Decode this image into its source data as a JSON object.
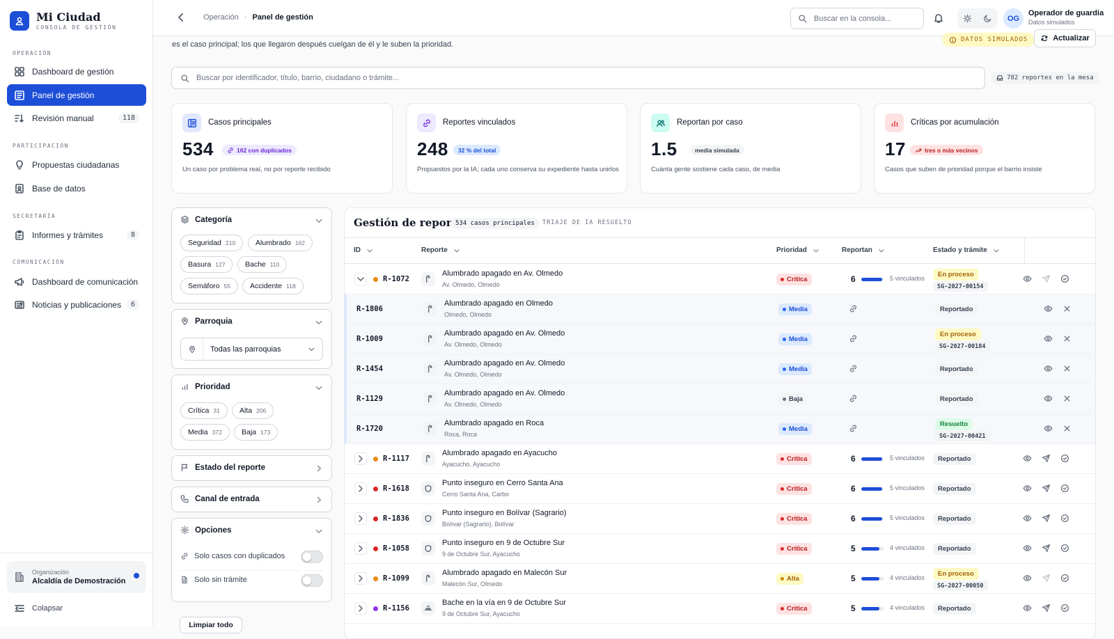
{
  "brand": {
    "name": "Mi Ciudad",
    "sub": "CONSOLA DE GESTIÓN"
  },
  "nav": {
    "sections": {
      "operacion": "OPERACIÓN",
      "participacion": "PARTICIPACIÓN",
      "secretaria": "SECRETARÍA",
      "comunicacion": "COMUNICACIÓN"
    },
    "items": [
      {
        "label": "Dashboard de gestión",
        "icon": "grid-icon"
      },
      {
        "label": "Panel de gestión",
        "icon": "panel-icon"
      },
      {
        "label": "Revisión manual",
        "icon": "sort-icon",
        "badge": "118"
      },
      {
        "label": "Propuestas ciudadanas",
        "icon": "bulb-icon"
      },
      {
        "label": "Base de datos",
        "icon": "contacts-icon"
      },
      {
        "label": "Informes y trámites",
        "icon": "clipboard-icon",
        "badge": "8"
      },
      {
        "label": "Dashboard de comunicación",
        "icon": "megaphone-icon"
      },
      {
        "label": "Noticias y publicaciones",
        "icon": "newspaper-icon",
        "badge": "6"
      }
    ],
    "org_label": "Organización",
    "org_name": "Alcaldía de Demostración",
    "collapse": "Colapsar"
  },
  "topbar": {
    "crumb_parent": "Operación",
    "crumb_sep": "·",
    "crumb_current": "Panel de gestión",
    "search_placeholder": "Buscar en la consola...",
    "avatar": "OG",
    "user_name": "Operador de guardia",
    "user_sub": "Datos simulados"
  },
  "main": {
    "intro": "es el caso principal; los que llegaron después cuelgan de él y le suben la prioridad.",
    "sim_badge": "DATOS SIMULADOS",
    "refresh": "Actualizar",
    "search_placeholder": "Buscar por identificador, título, barrio, ciudadano o trámite...",
    "count_pill": "782 reportes en la mesa"
  },
  "kpis": [
    {
      "title": "Casos principales",
      "value": "534",
      "badge": "162 con duplicados",
      "desc": "Un caso por problema real, no por reporte recibido"
    },
    {
      "title": "Reportes vinculados",
      "value": "248",
      "badge": "32 % del total",
      "desc": "Propuestos por la IA; cada uno conserva su expediente hasta unirlos"
    },
    {
      "title": "Reportan por caso",
      "value": "1.5",
      "badge": "media simulada",
      "desc": "Cuánta gente sostiene cada caso, de media"
    },
    {
      "title": "Críticas por acumulación",
      "value": "17",
      "badge": "tres o más vecinos",
      "desc": "Casos que suben de prioridad porque el barrio insiste"
    }
  ],
  "filters": {
    "categoria": {
      "title": "Categoría",
      "chips": [
        {
          "l": "Seguridad",
          "n": "210"
        },
        {
          "l": "Alumbrado",
          "n": "162"
        },
        {
          "l": "Basura",
          "n": "127"
        },
        {
          "l": "Bache",
          "n": "110"
        },
        {
          "l": "Semáforo",
          "n": "55"
        },
        {
          "l": "Accidente",
          "n": "118"
        }
      ]
    },
    "parroquia": {
      "title": "Parroquia",
      "select": "Todas las parroquias"
    },
    "prioridad": {
      "title": "Prioridad",
      "chips": [
        {
          "l": "Crítica",
          "n": "31"
        },
        {
          "l": "Alta",
          "n": "206"
        },
        {
          "l": "Media",
          "n": "372"
        },
        {
          "l": "Baja",
          "n": "173"
        }
      ]
    },
    "estado": {
      "title": "Estado del reporte"
    },
    "canal": {
      "title": "Canal de entrada"
    },
    "opciones": {
      "title": "Opciones",
      "opt1": "Solo casos con duplicados",
      "opt2": "Solo sin trámite"
    },
    "clear": "Limpiar todo"
  },
  "table": {
    "title": "Gestión de reportes",
    "pill": "534 casos principales",
    "sub": "TRIAJE DE IA RESUELTO",
    "headers": {
      "id": "ID",
      "reporte": "Reporte",
      "prioridad": "Prioridad",
      "reportan": "Reportan",
      "estado": "Estado y trámite"
    },
    "rows": [
      {
        "type": "main",
        "id": "R-1072",
        "dot": "#ea8a0c",
        "icon": "streetlight-icon",
        "title": "Alumbrado apagado en Av. Olmedo",
        "sub": "Av. Olmedo, Olmedo",
        "prio": "Crítica",
        "count": "6",
        "fill": 0.95,
        "linked": "5 vinculados",
        "estado": "En proceso",
        "tramite": "SG-2027-00154",
        "actions": [
          "eye",
          "send",
          "check"
        ]
      },
      {
        "type": "sub",
        "id": "R-1806",
        "icon": "streetlight-icon",
        "title": "Alumbrado apagado en Olmedo",
        "sub": "Olmedo, Olmedo",
        "prio": "Media",
        "estado": "Reportado"
      },
      {
        "type": "sub",
        "id": "R-1009",
        "icon": "streetlight-icon",
        "title": "Alumbrado apagado en Av. Olmedo",
        "sub": "Av. Olmedo, Olmedo",
        "prio": "Media",
        "estado": "En proceso",
        "tramite": "SG-2027-00184"
      },
      {
        "type": "sub",
        "id": "R-1454",
        "icon": "streetlight-icon",
        "title": "Alumbrado apagado en Av. Olmedo",
        "sub": "Av. Olmedo, Olmedo",
        "prio": "Media",
        "estado": "Reportado"
      },
      {
        "type": "sub",
        "id": "R-1129",
        "icon": "streetlight-icon",
        "title": "Alumbrado apagado en Av. Olmedo",
        "sub": "Av. Olmedo, Olmedo",
        "prio": "Baja",
        "estado": "Reportado"
      },
      {
        "type": "sub",
        "id": "R-1720",
        "icon": "streetlight-icon",
        "title": "Alumbrado apagado en Roca",
        "sub": "Roca, Roca",
        "prio": "Media",
        "estado": "Resuelto",
        "tramite": "SG-2027-00421"
      },
      {
        "type": "main",
        "id": "R-1117",
        "dot": "#ea8a0c",
        "icon": "streetlight-icon",
        "title": "Alumbrado apagado en Ayacucho",
        "sub": "Ayacucho, Ayacucho",
        "prio": "Crítica",
        "count": "6",
        "fill": 0.95,
        "linked": "5 vinculados",
        "estado": "Reportado"
      },
      {
        "type": "main",
        "id": "R-1618",
        "dot": "#dc2626",
        "icon": "shield-icon",
        "title": "Punto inseguro en Cerro Santa Ana",
        "sub": "Cerro Santa Ana, Carbo",
        "prio": "Crítica",
        "count": "6",
        "fill": 0.95,
        "linked": "5 vinculados",
        "estado": "Reportado"
      },
      {
        "type": "main",
        "id": "R-1836",
        "dot": "#dc2626",
        "icon": "shield-icon",
        "title": "Punto inseguro en Bolívar (Sagrario)",
        "sub": "Bolívar (Sagrario), Bolívar",
        "prio": "Crítica",
        "count": "6",
        "fill": 0.95,
        "linked": "5 vinculados",
        "estado": "Reportado"
      },
      {
        "type": "main",
        "id": "R-1058",
        "dot": "#dc2626",
        "icon": "shield-icon",
        "title": "Punto inseguro en 9 de Octubre Sur",
        "sub": "9 de Octubre Sur, Ayacucho",
        "prio": "Crítica",
        "count": "5",
        "fill": 0.8,
        "linked": "4 vinculados",
        "estado": "Reportado"
      },
      {
        "type": "main",
        "id": "R-1099",
        "dot": "#ea8a0c",
        "icon": "streetlight-icon",
        "title": "Alumbrado apagado en Malecón Sur",
        "sub": "Malecón Sur, Olmedo",
        "prio": "Alta",
        "count": "5",
        "fill": 0.8,
        "linked": "4 vinculados",
        "estado": "En proceso",
        "tramite": "SG-2027-00050"
      },
      {
        "type": "main",
        "id": "R-1156",
        "dot": "#9333ea",
        "icon": "pothole-icon",
        "title": "Bache en la vía en 9 de Octubre Sur",
        "sub": "9 de Octubre Sur, Ayacucho",
        "prio": "Crítica",
        "count": "5",
        "fill": 0.8,
        "linked": "4 vinculados",
        "estado": "Reportado"
      }
    ]
  },
  "colors": {
    "accent": "#1d4ed8",
    "critical": "#dc2626",
    "alta": "#ca8a04",
    "media": "#2563eb",
    "baja": "#6b7280",
    "resuelto": "#15803d"
  }
}
